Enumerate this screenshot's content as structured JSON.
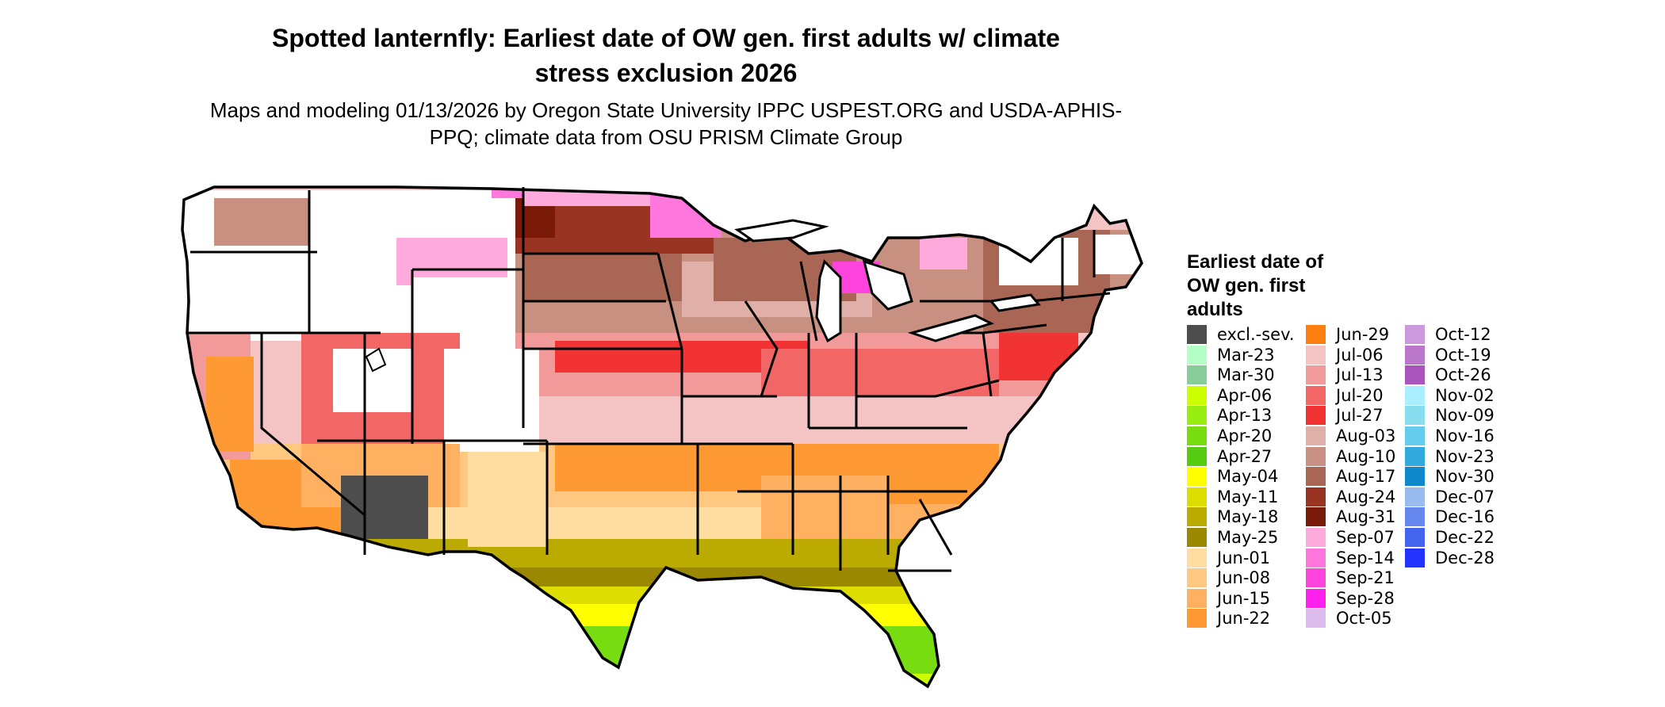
{
  "title": "Spotted lanternfly: Earliest date of OW gen. first adults w/ climate stress exclusion 2026",
  "subtitle": "Maps and modeling 01/13/2026 by Oregon State University IPPC USPEST.ORG and USDA-APHIS-PPQ; climate data from OSU PRISM Climate Group",
  "legend": {
    "title": "Earliest date of OW gen. first adults",
    "columns": [
      [
        {
          "label": "excl.-sev.",
          "color": "#4d4d4d"
        },
        {
          "label": "Mar-23",
          "color": "#b3ffc6"
        },
        {
          "label": "Mar-30",
          "color": "#88cc99"
        },
        {
          "label": "Apr-06",
          "color": "#ccff00"
        },
        {
          "label": "Apr-13",
          "color": "#99ee11"
        },
        {
          "label": "Apr-20",
          "color": "#77dd11"
        },
        {
          "label": "Apr-27",
          "color": "#55cc11"
        },
        {
          "label": "May-04",
          "color": "#ffff00"
        },
        {
          "label": "May-11",
          "color": "#dddd00"
        },
        {
          "label": "May-18",
          "color": "#bbaa00"
        },
        {
          "label": "May-25",
          "color": "#998800"
        },
        {
          "label": "Jun-01",
          "color": "#ffdda0"
        },
        {
          "label": "Jun-08",
          "color": "#ffc880"
        },
        {
          "label": "Jun-15",
          "color": "#ffb060"
        },
        {
          "label": "Jun-22",
          "color": "#ff9933"
        }
      ],
      [
        {
          "label": "Jun-29",
          "color": "#ff8011"
        },
        {
          "label": "Jul-06",
          "color": "#f4c4c4"
        },
        {
          "label": "Jul-13",
          "color": "#f29a9a"
        },
        {
          "label": "Jul-20",
          "color": "#f26666"
        },
        {
          "label": "Jul-27",
          "color": "#f23333"
        },
        {
          "label": "Aug-03",
          "color": "#e0b0a8"
        },
        {
          "label": "Aug-10",
          "color": "#c89080"
        },
        {
          "label": "Aug-17",
          "color": "#aa6655"
        },
        {
          "label": "Aug-24",
          "color": "#993322"
        },
        {
          "label": "Aug-31",
          "color": "#7a1a08"
        },
        {
          "label": "Sep-07",
          "color": "#ffaadd"
        },
        {
          "label": "Sep-14",
          "color": "#ff77dd"
        },
        {
          "label": "Sep-21",
          "color": "#ff44dd"
        },
        {
          "label": "Sep-28",
          "color": "#ff22ee"
        },
        {
          "label": "Oct-05",
          "color": "#ddbbee"
        }
      ],
      [
        {
          "label": "Oct-12",
          "color": "#cc99dd"
        },
        {
          "label": "Oct-19",
          "color": "#bb77cc"
        },
        {
          "label": "Oct-26",
          "color": "#aa55bb"
        },
        {
          "label": "Nov-02",
          "color": "#aaeeff"
        },
        {
          "label": "Nov-09",
          "color": "#88ddee"
        },
        {
          "label": "Nov-16",
          "color": "#66ccee"
        },
        {
          "label": "Nov-23",
          "color": "#33aadd"
        },
        {
          "label": "Nov-30",
          "color": "#1188cc"
        },
        {
          "label": "Dec-07",
          "color": "#99bbee"
        },
        {
          "label": "Dec-16",
          "color": "#6688ee"
        },
        {
          "label": "Dec-22",
          "color": "#4466ee"
        },
        {
          "label": "Dec-28",
          "color": "#2233ff"
        }
      ]
    ]
  }
}
